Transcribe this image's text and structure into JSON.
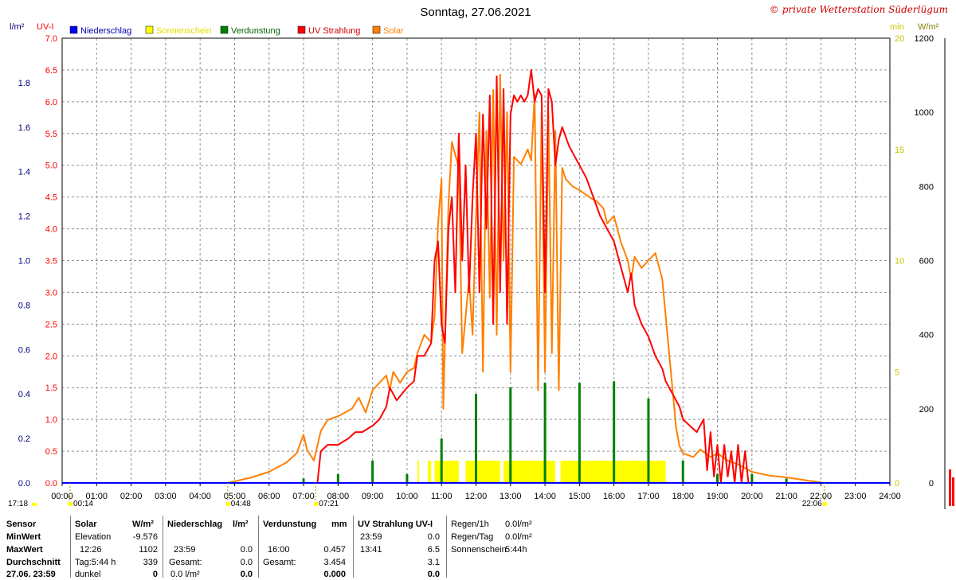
{
  "page": {
    "title": "Sonntag, 27.06.2021",
    "copyright": "© private Wetterstation Süderlügum",
    "unit_labels": {
      "left_outer": "l/m²",
      "left_inner": "UV-I",
      "right_min": "min",
      "right_wm2": "W/m²"
    }
  },
  "legend": [
    {
      "label": "Niederschlag",
      "color": "#0000ff"
    },
    {
      "label": "Sonnenschein",
      "color": "#ffff00"
    },
    {
      "label": "Verdunstung",
      "color": "#008000"
    },
    {
      "label": "UV Strahlung",
      "color": "#ff0000"
    },
    {
      "label": "Solar",
      "color": "#ff8000"
    }
  ],
  "markers": {
    "left_time": "17:18",
    "events": [
      {
        "label": "00:14",
        "hour": 0.23
      },
      {
        "label": "04:48",
        "hour": 4.8
      },
      {
        "label": "07:21",
        "hour": 7.35
      },
      {
        "label": "22:06",
        "hour": 22.1
      }
    ]
  },
  "chart_data": {
    "type": "line",
    "x_axis": {
      "ticks": [
        "00:00",
        "01:00",
        "02:00",
        "03:00",
        "04:00",
        "05:00",
        "06:00",
        "07:00",
        "08:00",
        "09:00",
        "10:00",
        "11:00",
        "12:00",
        "13:00",
        "14:00",
        "15:00",
        "16:00",
        "17:00",
        "18:00",
        "19:00",
        "20:00",
        "21:00",
        "22:00",
        "23:00",
        "24:00"
      ],
      "range": [
        0,
        24
      ]
    },
    "axes": {
      "precip_lm2": {
        "range": [
          0,
          2.0
        ],
        "ticks": [
          "0.0",
          "0.2",
          "0.4",
          "0.6",
          "0.8",
          "1.0",
          "1.2",
          "1.4",
          "1.6",
          "1.8"
        ],
        "color": "#000080"
      },
      "uv_index": {
        "range": [
          0,
          7.0
        ],
        "ticks": [
          "0.0",
          "0.5",
          "1.0",
          "1.5",
          "2.0",
          "2.5",
          "3.0",
          "3.5",
          "4.0",
          "4.5",
          "5.0",
          "5.5",
          "6.0",
          "6.5",
          "7.0"
        ],
        "color": "#ff0000"
      },
      "sunshine_min": {
        "range": [
          0,
          20
        ],
        "ticks": [
          "0",
          "5",
          "10",
          "15",
          "20"
        ],
        "color": "#c8c800"
      },
      "solar_wm2": {
        "range": [
          0,
          1200
        ],
        "ticks": [
          "0",
          "200",
          "400",
          "600",
          "800",
          "1000",
          "1200"
        ],
        "color": "#000000"
      }
    },
    "series": [
      {
        "name": "Solar",
        "axis": "solar_wm2",
        "color": "#ff8000",
        "points": [
          [
            4.8,
            0
          ],
          [
            5.5,
            15
          ],
          [
            6.0,
            30
          ],
          [
            6.5,
            55
          ],
          [
            6.8,
            80
          ],
          [
            7.0,
            130
          ],
          [
            7.1,
            90
          ],
          [
            7.3,
            60
          ],
          [
            7.5,
            140
          ],
          [
            7.7,
            170
          ],
          [
            8.0,
            180
          ],
          [
            8.2,
            190
          ],
          [
            8.4,
            200
          ],
          [
            8.6,
            230
          ],
          [
            8.8,
            190
          ],
          [
            9.0,
            250
          ],
          [
            9.2,
            270
          ],
          [
            9.4,
            290
          ],
          [
            9.5,
            250
          ],
          [
            9.6,
            300
          ],
          [
            9.8,
            270
          ],
          [
            10.0,
            300
          ],
          [
            10.2,
            310
          ],
          [
            10.3,
            350
          ],
          [
            10.5,
            400
          ],
          [
            10.7,
            380
          ],
          [
            10.8,
            450
          ],
          [
            10.9,
            700
          ],
          [
            11.0,
            820
          ],
          [
            11.05,
            200
          ],
          [
            11.2,
            750
          ],
          [
            11.3,
            920
          ],
          [
            11.5,
            850
          ],
          [
            11.6,
            350
          ],
          [
            11.8,
            550
          ],
          [
            11.9,
            400
          ],
          [
            12.0,
            720
          ],
          [
            12.1,
            1000
          ],
          [
            12.2,
            300
          ],
          [
            12.3,
            950
          ],
          [
            12.4,
            500
          ],
          [
            12.5,
            1060
          ],
          [
            12.6,
            400
          ],
          [
            12.7,
            1102
          ],
          [
            12.8,
            600
          ],
          [
            12.9,
            1000
          ],
          [
            13.0,
            300
          ],
          [
            13.1,
            880
          ],
          [
            13.2,
            870
          ],
          [
            13.3,
            860
          ],
          [
            13.4,
            880
          ],
          [
            13.5,
            900
          ],
          [
            13.6,
            870
          ],
          [
            13.7,
            1050
          ],
          [
            13.8,
            250
          ],
          [
            13.9,
            1000
          ],
          [
            14.0,
            300
          ],
          [
            14.1,
            1000
          ],
          [
            14.2,
            350
          ],
          [
            14.3,
            950
          ],
          [
            14.4,
            250
          ],
          [
            14.5,
            850
          ],
          [
            14.6,
            820
          ],
          [
            14.8,
            800
          ],
          [
            15.0,
            790
          ],
          [
            15.3,
            770
          ],
          [
            15.5,
            760
          ],
          [
            15.7,
            740
          ],
          [
            15.8,
            700
          ],
          [
            16.0,
            720
          ],
          [
            16.2,
            650
          ],
          [
            16.4,
            600
          ],
          [
            16.5,
            550
          ],
          [
            16.6,
            610
          ],
          [
            16.8,
            580
          ],
          [
            17.0,
            600
          ],
          [
            17.2,
            620
          ],
          [
            17.4,
            550
          ],
          [
            17.5,
            450
          ],
          [
            17.6,
            350
          ],
          [
            17.7,
            250
          ],
          [
            17.8,
            150
          ],
          [
            17.9,
            100
          ],
          [
            18.0,
            80
          ],
          [
            18.3,
            70
          ],
          [
            18.5,
            90
          ],
          [
            18.8,
            70
          ],
          [
            19.0,
            80
          ],
          [
            19.3,
            60
          ],
          [
            19.6,
            50
          ],
          [
            20.0,
            30
          ],
          [
            20.5,
            20
          ],
          [
            21.0,
            15
          ],
          [
            21.5,
            8
          ],
          [
            22.1,
            0
          ]
        ]
      },
      {
        "name": "UV Strahlung",
        "axis": "uv_index",
        "color": "#ff0000",
        "points": [
          [
            7.4,
            0
          ],
          [
            7.5,
            0.5
          ],
          [
            7.7,
            0.6
          ],
          [
            8.0,
            0.6
          ],
          [
            8.3,
            0.7
          ],
          [
            8.5,
            0.8
          ],
          [
            8.7,
            0.8
          ],
          [
            9.0,
            0.9
          ],
          [
            9.2,
            1.0
          ],
          [
            9.4,
            1.2
          ],
          [
            9.5,
            1.5
          ],
          [
            9.7,
            1.3
          ],
          [
            10.0,
            1.5
          ],
          [
            10.2,
            1.6
          ],
          [
            10.3,
            2.0
          ],
          [
            10.5,
            2.0
          ],
          [
            10.7,
            2.2
          ],
          [
            10.8,
            3.5
          ],
          [
            10.9,
            3.8
          ],
          [
            11.0,
            2.5
          ],
          [
            11.1,
            2.2
          ],
          [
            11.2,
            4.0
          ],
          [
            11.3,
            4.5
          ],
          [
            11.4,
            3.0
          ],
          [
            11.5,
            5.5
          ],
          [
            11.6,
            3.5
          ],
          [
            11.7,
            5.0
          ],
          [
            11.8,
            3.0
          ],
          [
            11.9,
            4.5
          ],
          [
            12.0,
            5.5
          ],
          [
            12.1,
            3.0
          ],
          [
            12.2,
            5.8
          ],
          [
            12.3,
            4.0
          ],
          [
            12.4,
            6.1
          ],
          [
            12.5,
            2.5
          ],
          [
            12.6,
            6.4
          ],
          [
            12.7,
            3.0
          ],
          [
            12.8,
            6.2
          ],
          [
            12.9,
            2.5
          ],
          [
            13.0,
            5.8
          ],
          [
            13.1,
            6.1
          ],
          [
            13.2,
            6.0
          ],
          [
            13.3,
            6.1
          ],
          [
            13.4,
            6.0
          ],
          [
            13.5,
            6.1
          ],
          [
            13.6,
            6.5
          ],
          [
            13.7,
            6.0
          ],
          [
            13.8,
            6.2
          ],
          [
            13.9,
            6.1
          ],
          [
            14.0,
            3.0
          ],
          [
            14.1,
            6.2
          ],
          [
            14.2,
            6.0
          ],
          [
            14.3,
            5.0
          ],
          [
            14.4,
            5.4
          ],
          [
            14.5,
            5.6
          ],
          [
            14.7,
            5.3
          ],
          [
            15.0,
            5.0
          ],
          [
            15.2,
            4.8
          ],
          [
            15.4,
            4.5
          ],
          [
            15.6,
            4.2
          ],
          [
            15.8,
            4.0
          ],
          [
            16.0,
            3.8
          ],
          [
            16.2,
            3.4
          ],
          [
            16.4,
            3.0
          ],
          [
            16.5,
            3.3
          ],
          [
            16.6,
            2.8
          ],
          [
            16.8,
            2.5
          ],
          [
            17.0,
            2.3
          ],
          [
            17.2,
            2.0
          ],
          [
            17.4,
            1.8
          ],
          [
            17.5,
            1.6
          ],
          [
            17.7,
            1.4
          ],
          [
            17.9,
            1.2
          ],
          [
            18.0,
            1.0
          ],
          [
            18.2,
            0.9
          ],
          [
            18.4,
            0.8
          ],
          [
            18.6,
            1.0
          ],
          [
            18.7,
            0.2
          ],
          [
            18.8,
            0.8
          ],
          [
            18.9,
            0.1
          ],
          [
            19.0,
            0.6
          ],
          [
            19.1,
            0.0
          ],
          [
            19.2,
            0.6
          ],
          [
            19.3,
            0.1
          ],
          [
            19.4,
            0.5
          ],
          [
            19.5,
            0.0
          ],
          [
            19.6,
            0.6
          ],
          [
            19.7,
            0.0
          ],
          [
            19.8,
            0.5
          ],
          [
            19.9,
            0.0
          ],
          [
            20.0,
            0.0
          ]
        ]
      },
      {
        "name": "Verdunstung",
        "axis": "precip_lm2",
        "color": "#008000",
        "bars": [
          [
            7.0,
            0.02
          ],
          [
            8.0,
            0.04
          ],
          [
            9.0,
            0.1
          ],
          [
            10.0,
            0.04
          ],
          [
            11.0,
            0.2
          ],
          [
            12.0,
            0.4
          ],
          [
            13.0,
            0.43
          ],
          [
            14.0,
            0.45
          ],
          [
            15.0,
            0.45
          ],
          [
            16.0,
            0.457
          ],
          [
            17.0,
            0.38
          ],
          [
            18.0,
            0.1
          ],
          [
            19.0,
            0.04
          ],
          [
            20.0,
            0.04
          ],
          [
            21.0,
            0.02
          ]
        ]
      },
      {
        "name": "Sonnenschein",
        "axis": "sunshine_min",
        "color": "#ffff00",
        "ranges": [
          [
            10.3,
            10.35
          ],
          [
            10.6,
            10.7
          ],
          [
            10.8,
            11.5
          ],
          [
            11.7,
            12.7
          ],
          [
            12.8,
            14.3
          ],
          [
            14.45,
            15.5
          ],
          [
            15.5,
            16.5
          ],
          [
            16.5,
            17.5
          ]
        ],
        "height": 1
      }
    ]
  },
  "stats": {
    "headers": {
      "sensor": "Sensor",
      "solar": "Solar",
      "solar_unit": "W/m²",
      "precip": "Niederschlag",
      "precip_unit": "l/m²",
      "evap": "Verdunstung",
      "evap_unit": "mm",
      "uv": "UV Strahlung UV-I"
    },
    "rows": [
      {
        "label": "MinWert",
        "solar_a": "Elevation",
        "solar_b": "-9.576",
        "precip_a": "",
        "precip_b": "",
        "evap_a": "",
        "evap_b": "",
        "uv_a": "23:59",
        "uv_b": "0.0"
      },
      {
        "label": "MaxWert",
        "solar_a": "12:26",
        "solar_b": "1102",
        "precip_a": "23:59",
        "precip_b": "0.0",
        "evap_a": "16:00",
        "evap_b": "0.457",
        "uv_a": "13:41",
        "uv_b": "6.5"
      },
      {
        "label": "Durchschnitt",
        "solar_a": "Tag:5:44 h",
        "solar_b": "339",
        "precip_a": "Gesamt:",
        "precip_b": "0.0",
        "evap_a": "Gesamt:",
        "evap_b": "3.454",
        "uv_a": "",
        "uv_b": "3.1"
      },
      {
        "label": "27.06. 23:59",
        "solar_a": "dunkel",
        "solar_b": "0",
        "precip_a": "0.0 l/m²",
        "precip_b": "0.0",
        "evap_a": "",
        "evap_b": "0.000",
        "uv_a": "",
        "uv_b": "0.0"
      }
    ],
    "extra": [
      {
        "label": "Regen/1h",
        "value": "0.0l/m²"
      },
      {
        "label": "Regen/Tag",
        "value": "0.0l/m²"
      },
      {
        "label": "Sonnenschein",
        "value": "5:44h"
      }
    ]
  }
}
